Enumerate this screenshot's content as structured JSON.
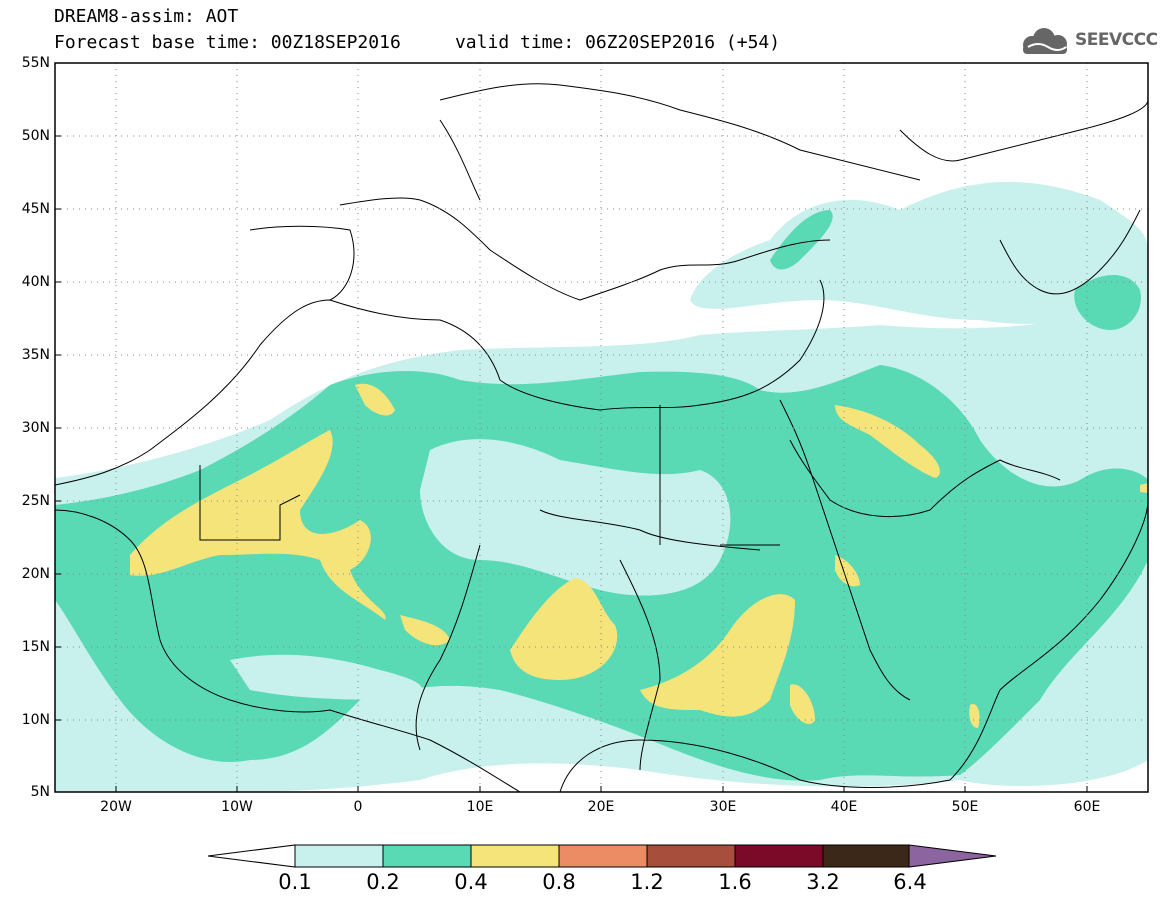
{
  "header": {
    "line1": "DREAM8-assim: AOT",
    "line2": "Forecast base time: 00Z18SEP2016     valid time: 06Z20SEP2016 (+54)"
  },
  "logo": {
    "text": "SEEVCCC",
    "color": "#666666"
  },
  "map": {
    "lon_range": [
      -25,
      65
    ],
    "lat_range": [
      5,
      55
    ],
    "lat_labels": [
      "55N",
      "50N",
      "45N",
      "40N",
      "35N",
      "30N",
      "25N",
      "20N",
      "15N",
      "10N",
      "5N"
    ],
    "lon_labels": [
      "20W",
      "10W",
      "0",
      "10E",
      "20E",
      "30E",
      "40E",
      "50E",
      "60E"
    ],
    "grid": "dotted"
  },
  "colorbar": {
    "ticks": [
      "0.1",
      "0.2",
      "0.4",
      "0.8",
      "1.2",
      "1.6",
      "3.2",
      "6.4"
    ],
    "colors": [
      "#ffffff",
      "#c8f0ec",
      "#5ad9b5",
      "#f5e47a",
      "#eb8c64",
      "#a84e3c",
      "#7a0a28",
      "#3c2818",
      "#8c64a0"
    ]
  }
}
